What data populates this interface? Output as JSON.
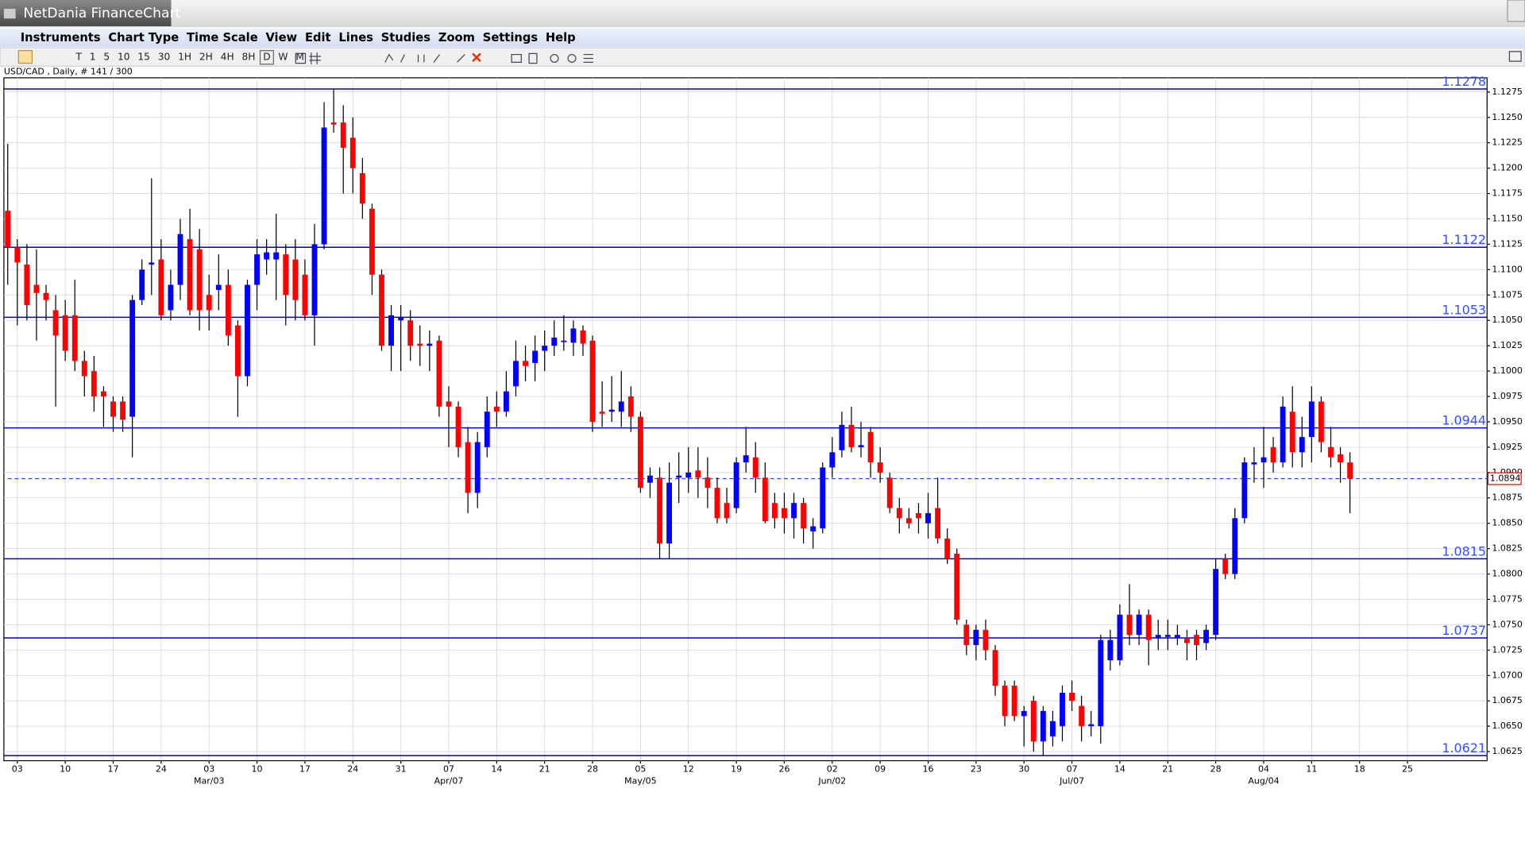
{
  "window": {
    "title": "NetDania FinanceChart",
    "menu": [
      "Instruments",
      "Chart Type",
      "Time Scale",
      "View",
      "Edit",
      "Lines",
      "Studies",
      "Zoom",
      "Settings",
      "Help"
    ],
    "intervals": [
      "T",
      "1",
      "5",
      "10",
      "15",
      "30",
      "1H",
      "2H",
      "4H",
      "8H",
      "D",
      "W",
      "M"
    ],
    "symbol_info": "USD/CAD , Daily, # 141 / 300"
  },
  "chart_data": {
    "type": "candlestick",
    "up_color": "#0000ff",
    "down_color": "#ff0000",
    "wick_color": "#000000",
    "grid": true,
    "level_color": "#0000cc",
    "levels": [
      1.1278,
      1.1122,
      1.1053,
      1.0944,
      1.0815,
      1.0737,
      1.0621
    ],
    "last": 1.0894,
    "xlim": [
      -0.4,
      154.3
    ],
    "ylim": [
      1.0616,
      1.1289
    ],
    "yticks": [
      1.0625,
      {
        "value": 1.065,
        "label": "1.0650"
      },
      1.0675,
      {
        "value": 1.07,
        "label": "1.0700"
      },
      1.0725,
      {
        "value": 1.075,
        "label": "1.0750"
      },
      1.0775,
      {
        "value": 1.08,
        "label": "1.0800"
      },
      1.0825,
      {
        "value": 1.085,
        "label": "1.0850"
      },
      1.0875,
      {
        "value": 1.09,
        "label": "1.0900"
      },
      1.0925,
      {
        "value": 1.095,
        "label": "1.0950"
      },
      1.0975,
      {
        "value": 1.1,
        "label": "1.1000"
      },
      1.1025,
      {
        "value": 1.105,
        "label": "1.1050"
      },
      1.1075,
      {
        "value": 1.11,
        "label": "1.1100"
      },
      1.1125,
      {
        "value": 1.115,
        "label": "1.1150"
      },
      1.1175,
      {
        "value": 1.12,
        "label": "1.1200"
      },
      1.1225,
      {
        "value": 1.125,
        "label": "1.1250"
      },
      1.1275
    ],
    "xticks": [
      {
        "value": 1,
        "label": "03"
      },
      {
        "value": 6,
        "label": "10"
      },
      {
        "value": 11,
        "label": "17"
      },
      {
        "value": 16,
        "label": "24"
      },
      {
        "value": 21,
        "label": "03"
      },
      {
        "value": 26,
        "label": "10"
      },
      {
        "value": 31,
        "label": "17"
      },
      {
        "value": 36,
        "label": "24"
      },
      {
        "value": 41,
        "label": "31"
      },
      {
        "value": 46,
        "label": "07"
      },
      {
        "value": 51,
        "label": "14"
      },
      {
        "value": 56,
        "label": "21"
      },
      {
        "value": 61,
        "label": "28"
      },
      {
        "value": 66,
        "label": "05"
      },
      {
        "value": 71,
        "label": "12"
      },
      {
        "value": 76,
        "label": "19"
      },
      {
        "value": 81,
        "label": "26"
      },
      {
        "value": 86,
        "label": "02"
      },
      {
        "value": 91,
        "label": "09"
      },
      {
        "value": 96,
        "label": "16"
      },
      {
        "value": 101,
        "label": "23"
      },
      {
        "value": 106,
        "label": "30"
      },
      {
        "value": 111,
        "label": "07"
      },
      {
        "value": 116,
        "label": "14"
      },
      {
        "value": 121,
        "label": "21"
      },
      {
        "value": 126,
        "label": "28"
      },
      {
        "value": 131,
        "label": "04"
      },
      {
        "value": 136,
        "label": "11"
      },
      {
        "value": 141,
        "label": "18"
      },
      {
        "value": 146,
        "label": "25"
      }
    ],
    "month_labels": [
      {
        "value": 21,
        "label": "Mar/03"
      },
      {
        "value": 46,
        "label": "Apr/07"
      },
      {
        "value": 66,
        "label": "May/05"
      },
      {
        "value": 86,
        "label": "Jun/02"
      },
      {
        "value": 111,
        "label": "Jul/07"
      },
      {
        "value": 131,
        "label": "Aug/04"
      }
    ],
    "open": [
      1.1158,
      1.1122,
      1.1105,
      1.1085,
      1.1077,
      1.106,
      1.1055,
      1.1055,
      1.101,
      1.1,
      1.098,
      1.097,
      1.097,
      1.0955,
      1.107,
      1.1105,
      1.111,
      1.106,
      1.1085,
      1.113,
      1.112,
      1.1075,
      1.108,
      1.1085,
      1.1045,
      1.0995,
      1.1085,
      1.111,
      1.111,
      1.1115,
      1.111,
      1.1095,
      1.1055,
      1.1125,
      1.1245,
      1.1245,
      1.123,
      1.1195,
      1.116,
      1.1095,
      1.1025,
      1.105,
      1.105,
      1.1027,
      1.1025,
      1.103,
      1.097,
      1.0965,
      1.093,
      1.088,
      1.0925,
      1.0965,
      1.096,
      1.0985,
      1.101,
      1.1008,
      1.102,
      1.1025,
      1.103,
      1.1028,
      1.104,
      1.103,
      1.096,
      1.096,
      1.096,
      1.0975,
      1.0955,
      1.089,
      1.0895,
      1.083,
      1.0895,
      1.0895,
      1.0902,
      1.0895,
      1.0885,
      1.087,
      1.0865,
      1.091,
      1.0915,
      1.0895,
      1.087,
      1.0865,
      1.0855,
      1.087,
      1.0842,
      1.0845,
      1.0905,
      1.0922,
      1.0947,
      1.0925,
      1.094,
      1.091,
      1.0895,
      1.0865,
      1.0855,
      1.086,
      1.085,
      1.0865,
      1.0835,
      1.082,
      1.075,
      1.073,
      1.0745,
      1.0725,
      1.069,
      1.069,
      1.066,
      1.0675,
      1.0635,
      1.064,
      1.065,
      1.0683,
      1.067,
      1.065,
      1.065,
      1.0715,
      1.0715,
      1.076,
      1.074,
      1.076,
      1.0737,
      1.0738,
      1.0737,
      1.0737,
      1.074,
      1.0732,
      1.074,
      1.0815,
      1.08,
      1.0855,
      1.0908,
      1.091,
      1.0925,
      1.091,
      1.096,
      1.092,
      1.0935,
      1.097,
      1.0925,
      1.0918,
      1.091
    ],
    "high": [
      1.1224,
      1.113,
      1.1125,
      1.112,
      1.1085,
      1.1075,
      1.107,
      1.109,
      1.102,
      1.1015,
      1.0985,
      1.0975,
      1.0975,
      1.1075,
      1.111,
      1.119,
      1.113,
      1.11,
      1.115,
      1.116,
      1.114,
      1.1095,
      1.1115,
      1.11,
      1.105,
      1.109,
      1.113,
      1.113,
      1.1155,
      1.1125,
      1.113,
      1.111,
      1.1145,
      1.1265,
      1.1278,
      1.1262,
      1.125,
      1.121,
      1.1165,
      1.11,
      1.1065,
      1.1065,
      1.106,
      1.1045,
      1.104,
      1.1035,
      1.0985,
      1.097,
      1.0945,
      1.094,
      1.0975,
      1.098,
      1.1,
      1.103,
      1.1025,
      1.1035,
      1.104,
      1.105,
      1.1055,
      1.105,
      1.1045,
      1.1035,
      1.099,
      1.0995,
      1.1,
      1.0985,
      1.096,
      1.0905,
      1.0905,
      1.091,
      1.092,
      1.0925,
      1.0925,
      1.0915,
      1.0895,
      1.0885,
      1.0915,
      1.0945,
      1.093,
      1.091,
      1.088,
      1.088,
      1.088,
      1.0875,
      1.0855,
      1.091,
      1.0935,
      1.096,
      1.0965,
      1.095,
      1.0945,
      1.0925,
      1.09,
      1.0875,
      1.0865,
      1.087,
      1.088,
      1.0895,
      1.0845,
      1.0825,
      1.0755,
      1.075,
      1.0755,
      1.073,
      1.0695,
      1.0695,
      1.067,
      1.068,
      1.067,
      1.0665,
      1.069,
      1.0695,
      1.068,
      1.0665,
      1.074,
      1.0745,
      1.077,
      1.079,
      1.0765,
      1.0765,
      1.0755,
      1.0755,
      1.075,
      1.0745,
      1.0745,
      1.075,
      1.0815,
      1.082,
      1.0865,
      1.0915,
      1.0925,
      1.0945,
      1.0935,
      1.0975,
      1.0985,
      1.0955,
      1.0985,
      1.0975,
      1.0945,
      1.0925,
      1.092
    ],
    "low": [
      1.1085,
      1.1045,
      1.105,
      1.103,
      1.105,
      1.0965,
      1.101,
      1.1,
      1.0975,
      1.096,
      1.0945,
      1.094,
      1.094,
      1.0915,
      1.1065,
      1.1075,
      1.105,
      1.105,
      1.107,
      1.1055,
      1.104,
      1.104,
      1.106,
      1.1025,
      1.0955,
      1.0985,
      1.106,
      1.1095,
      1.107,
      1.1045,
      1.105,
      1.105,
      1.1025,
      1.112,
      1.1235,
      1.1175,
      1.1175,
      1.115,
      1.1075,
      1.102,
      1.1,
      1.1,
      1.101,
      1.1005,
      1.1,
      1.0955,
      1.0925,
      1.0915,
      1.086,
      1.0865,
      1.0915,
      1.0945,
      1.0955,
      1.0975,
      1.099,
      1.099,
      1.1,
      1.1015,
      1.102,
      1.1015,
      1.1015,
      1.094,
      1.0945,
      1.095,
      1.0945,
      1.094,
      1.088,
      1.0875,
      1.0815,
      1.0815,
      1.087,
      1.088,
      1.0875,
      1.0865,
      1.085,
      1.085,
      1.086,
      1.09,
      1.088,
      1.085,
      1.0845,
      1.084,
      1.0835,
      1.083,
      1.0825,
      1.084,
      1.0895,
      1.0915,
      1.092,
      1.0915,
      1.0895,
      1.089,
      1.086,
      1.084,
      1.0845,
      1.084,
      1.0835,
      1.083,
      1.081,
      1.075,
      1.072,
      1.0715,
      1.0715,
      1.068,
      1.065,
      1.0655,
      1.063,
      1.0625,
      1.0621,
      1.063,
      1.0635,
      1.0665,
      1.0635,
      1.064,
      1.0633,
      1.0705,
      1.071,
      1.073,
      1.073,
      1.071,
      1.0725,
      1.0725,
      1.073,
      1.0715,
      1.0715,
      1.0725,
      1.0735,
      1.0795,
      1.0795,
      1.085,
      1.089,
      1.0885,
      1.09,
      1.0905,
      1.0905,
      1.0905,
      1.091,
      1.092,
      1.0905,
      1.089,
      1.086
    ],
    "close": [
      1.1122,
      1.1107,
      1.1065,
      1.1077,
      1.107,
      1.1035,
      1.102,
      1.101,
      1.0995,
      1.0975,
      1.0975,
      1.0955,
      1.0952,
      1.107,
      1.11,
      1.1107,
      1.1055,
      1.1085,
      1.1135,
      1.106,
      1.106,
      1.106,
      1.1085,
      1.1035,
      1.0995,
      1.1085,
      1.1115,
      1.1117,
      1.1117,
      1.1075,
      1.107,
      1.1055,
      1.1125,
      1.124,
      1.1243,
      1.122,
      1.12,
      1.1165,
      1.1095,
      1.1025,
      1.1055,
      1.1053,
      1.1025,
      1.1025,
      1.1027,
      1.0965,
      1.0965,
      1.0925,
      1.088,
      1.093,
      1.096,
      1.096,
      1.098,
      1.101,
      1.1005,
      1.102,
      1.1025,
      1.1033,
      1.103,
      1.1042,
      1.1027,
      1.095,
      1.0958,
      1.0962,
      1.097,
      1.0955,
      1.0885,
      1.0897,
      1.083,
      1.089,
      1.0897,
      1.09,
      1.0895,
      1.0885,
      1.0855,
      1.0855,
      1.091,
      1.0917,
      1.0895,
      1.0852,
      1.0855,
      1.0855,
      1.087,
      1.0845,
      1.0847,
      1.0905,
      1.092,
      1.0947,
      1.0925,
      1.0927,
      1.091,
      1.09,
      1.0865,
      1.0855,
      1.085,
      1.0855,
      1.086,
      1.0835,
      1.0815,
      1.0755,
      1.073,
      1.0745,
      1.0725,
      1.069,
      1.066,
      1.066,
      1.0665,
      1.0635,
      1.0665,
      1.0655,
      1.0683,
      1.0675,
      1.065,
      1.0652,
      1.0735,
      1.0735,
      1.076,
      1.074,
      1.076,
      1.0735,
      1.074,
      1.074,
      1.074,
      1.0732,
      1.073,
      1.0745,
      1.0805,
      1.08,
      1.0855,
      1.091,
      1.091,
      1.0915,
      1.091,
      1.0965,
      1.092,
      1.0935,
      1.097,
      1.093,
      1.0915,
      1.091,
      1.0894
    ]
  }
}
